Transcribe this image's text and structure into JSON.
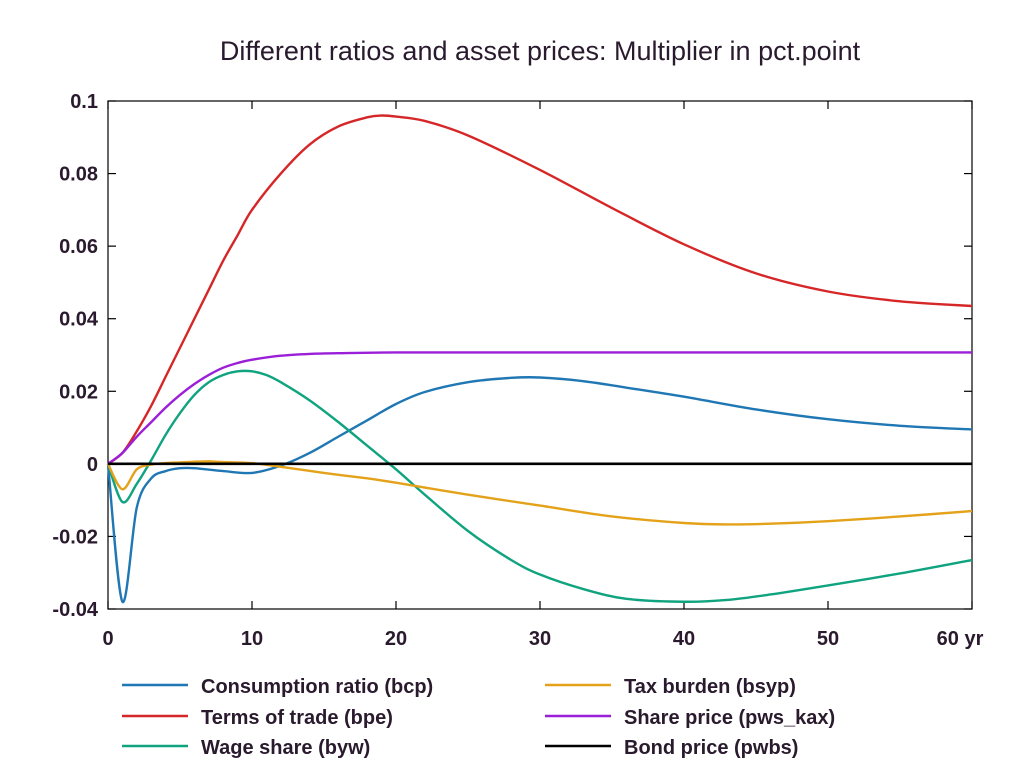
{
  "chart_data": {
    "type": "line",
    "title": "Different ratios and asset prices: Multiplier in pct.point",
    "xlabel": "",
    "ylabel": "",
    "x_unit_label": "yr",
    "xlim": [
      0,
      60
    ],
    "ylim": [
      -0.04,
      0.1
    ],
    "xticks": [
      0,
      10,
      20,
      30,
      40,
      50,
      60
    ],
    "xtick_labels": [
      "0",
      "10",
      "20",
      "30",
      "40",
      "50",
      "60 yr"
    ],
    "yticks": [
      -0.04,
      -0.02,
      0,
      0.02,
      0.04,
      0.06,
      0.08,
      0.1
    ],
    "ytick_labels": [
      "-0.04",
      "-0.02",
      "0",
      "0.02",
      "0.04",
      "0.06",
      "0.08",
      "0.1"
    ],
    "grid": false,
    "legend_position": "bottom",
    "series": [
      {
        "name": "Consumption ratio (bcp)",
        "color": "#1f77b4",
        "points": [
          [
            0,
            0
          ],
          [
            1,
            -0.038
          ],
          [
            2,
            -0.012
          ],
          [
            3,
            -0.004
          ],
          [
            4,
            -0.002
          ],
          [
            5,
            -0.0012
          ],
          [
            6,
            -0.0012
          ],
          [
            8,
            -0.002
          ],
          [
            10,
            -0.0025
          ],
          [
            12,
            -0.0005
          ],
          [
            14,
            0.003
          ],
          [
            16,
            0.0075
          ],
          [
            18,
            0.012
          ],
          [
            20,
            0.0165
          ],
          [
            22,
            0.0198
          ],
          [
            25,
            0.0225
          ],
          [
            28,
            0.0237
          ],
          [
            30,
            0.0238
          ],
          [
            33,
            0.0228
          ],
          [
            36,
            0.021
          ],
          [
            40,
            0.0185
          ],
          [
            45,
            0.015
          ],
          [
            50,
            0.0123
          ],
          [
            55,
            0.0105
          ],
          [
            60,
            0.0095
          ]
        ]
      },
      {
        "name": "Terms of trade (bpe)",
        "color": "#d62728",
        "points": [
          [
            0,
            0
          ],
          [
            1,
            0.003
          ],
          [
            2,
            0.009
          ],
          [
            3,
            0.016
          ],
          [
            4,
            0.024
          ],
          [
            5,
            0.032
          ],
          [
            6,
            0.04
          ],
          [
            7,
            0.048
          ],
          [
            8,
            0.056
          ],
          [
            9,
            0.063
          ],
          [
            10,
            0.07
          ],
          [
            12,
            0.08
          ],
          [
            14,
            0.088
          ],
          [
            16,
            0.093
          ],
          [
            18,
            0.0955
          ],
          [
            19,
            0.096
          ],
          [
            20,
            0.0957
          ],
          [
            22,
            0.0945
          ],
          [
            25,
            0.0905
          ],
          [
            30,
            0.081
          ],
          [
            35,
            0.0705
          ],
          [
            40,
            0.0605
          ],
          [
            45,
            0.0525
          ],
          [
            50,
            0.0475
          ],
          [
            55,
            0.0448
          ],
          [
            60,
            0.0435
          ]
        ]
      },
      {
        "name": "Wage share (byw)",
        "color": "#10a37f",
        "points": [
          [
            0,
            0
          ],
          [
            1,
            -0.0105
          ],
          [
            2,
            -0.0055
          ],
          [
            3,
            0.001
          ],
          [
            4,
            0.008
          ],
          [
            5,
            0.014
          ],
          [
            6,
            0.019
          ],
          [
            7,
            0.0225
          ],
          [
            8,
            0.0245
          ],
          [
            9,
            0.0255
          ],
          [
            10,
            0.0255
          ],
          [
            11,
            0.0245
          ],
          [
            12,
            0.0225
          ],
          [
            14,
            0.0175
          ],
          [
            16,
            0.0115
          ],
          [
            18,
            0.005
          ],
          [
            20,
            -0.0015
          ],
          [
            22,
            -0.0085
          ],
          [
            25,
            -0.0185
          ],
          [
            28,
            -0.0265
          ],
          [
            30,
            -0.0305
          ],
          [
            33,
            -0.0345
          ],
          [
            36,
            -0.0372
          ],
          [
            40,
            -0.038
          ],
          [
            43,
            -0.0375
          ],
          [
            46,
            -0.036
          ],
          [
            50,
            -0.0335
          ],
          [
            55,
            -0.0302
          ],
          [
            60,
            -0.0265
          ]
        ]
      },
      {
        "name": "Tax burden (bsyp)",
        "color": "#e3a21a",
        "points": [
          [
            0,
            0
          ],
          [
            1,
            -0.007
          ],
          [
            2,
            -0.0015
          ],
          [
            3,
            -0.0002
          ],
          [
            4,
            0.0002
          ],
          [
            5,
            0.0004
          ],
          [
            6,
            0.0006
          ],
          [
            7,
            0.0007
          ],
          [
            8,
            0.0005
          ],
          [
            10,
            0.0002
          ],
          [
            12,
            -0.0008
          ],
          [
            15,
            -0.0025
          ],
          [
            18,
            -0.004
          ],
          [
            20,
            -0.0052
          ],
          [
            25,
            -0.0085
          ],
          [
            30,
            -0.0115
          ],
          [
            35,
            -0.0145
          ],
          [
            40,
            -0.0163
          ],
          [
            43,
            -0.0167
          ],
          [
            46,
            -0.0165
          ],
          [
            50,
            -0.0158
          ],
          [
            55,
            -0.0145
          ],
          [
            60,
            -0.013
          ]
        ]
      },
      {
        "name": "Share price (pws_kax)",
        "color": "#9b1fd8",
        "points": [
          [
            0,
            0
          ],
          [
            1,
            0.003
          ],
          [
            2,
            0.0075
          ],
          [
            3,
            0.0115
          ],
          [
            4,
            0.0155
          ],
          [
            5,
            0.019
          ],
          [
            6,
            0.022
          ],
          [
            7,
            0.0245
          ],
          [
            8,
            0.0265
          ],
          [
            9,
            0.0278
          ],
          [
            10,
            0.0287
          ],
          [
            12,
            0.0298
          ],
          [
            14,
            0.0303
          ],
          [
            16,
            0.0305
          ],
          [
            20,
            0.0307
          ],
          [
            30,
            0.0307
          ],
          [
            40,
            0.0307
          ],
          [
            50,
            0.0307
          ],
          [
            60,
            0.0307
          ]
        ]
      },
      {
        "name": "Bond price (pwbs)",
        "color": "#000000",
        "points": [
          [
            0,
            0
          ],
          [
            10,
            0
          ],
          [
            20,
            0
          ],
          [
            30,
            0
          ],
          [
            40,
            0
          ],
          [
            50,
            0
          ],
          [
            60,
            0
          ]
        ]
      }
    ],
    "legend_layout": [
      {
        "series": 0,
        "col": 0,
        "row": 0
      },
      {
        "series": 1,
        "col": 0,
        "row": 1
      },
      {
        "series": 2,
        "col": 0,
        "row": 2
      },
      {
        "series": 3,
        "col": 1,
        "row": 0
      },
      {
        "series": 4,
        "col": 1,
        "row": 1
      },
      {
        "series": 5,
        "col": 1,
        "row": 2
      }
    ]
  }
}
